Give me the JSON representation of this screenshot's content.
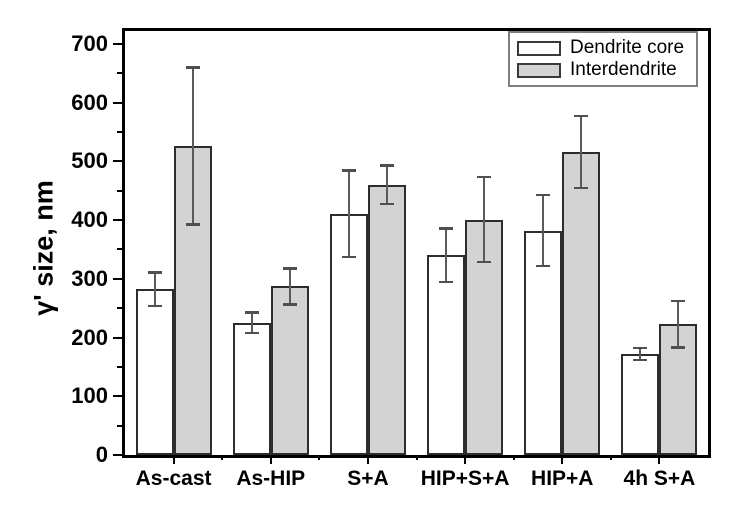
{
  "chart_data": {
    "type": "bar",
    "title": "",
    "xlabel": "",
    "ylabel": "γ' size, nm",
    "categories": [
      "As-cast",
      "As-HIP",
      "S+A",
      "HIP+S+A",
      "HIP+A",
      "4h S+A"
    ],
    "series": [
      {
        "name": "Dendrite core",
        "fill": "#ffffff",
        "values": [
          282,
          225,
          411,
          340,
          382,
          172
        ],
        "errors": [
          29,
          18,
          74,
          46,
          61,
          11
        ]
      },
      {
        "name": "Interdendrite",
        "fill": "#d3d3d3",
        "values": [
          526,
          287,
          460,
          401,
          516,
          223
        ],
        "errors": [
          134,
          31,
          33,
          73,
          62,
          40
        ]
      }
    ],
    "ylim": [
      0,
      722
    ],
    "yticks": [
      0,
      100,
      200,
      300,
      400,
      500,
      600,
      700
    ],
    "y_minor_step": 50,
    "grid": false,
    "legend_position": "top-right",
    "colors": {
      "axis": "#000000",
      "bar_edge": "#2d2d2d",
      "error_bar": "#5a5a5a",
      "error_cap": "#4f4f4f",
      "legend_border": "#7f7f7f",
      "background": "#ffffff"
    }
  }
}
